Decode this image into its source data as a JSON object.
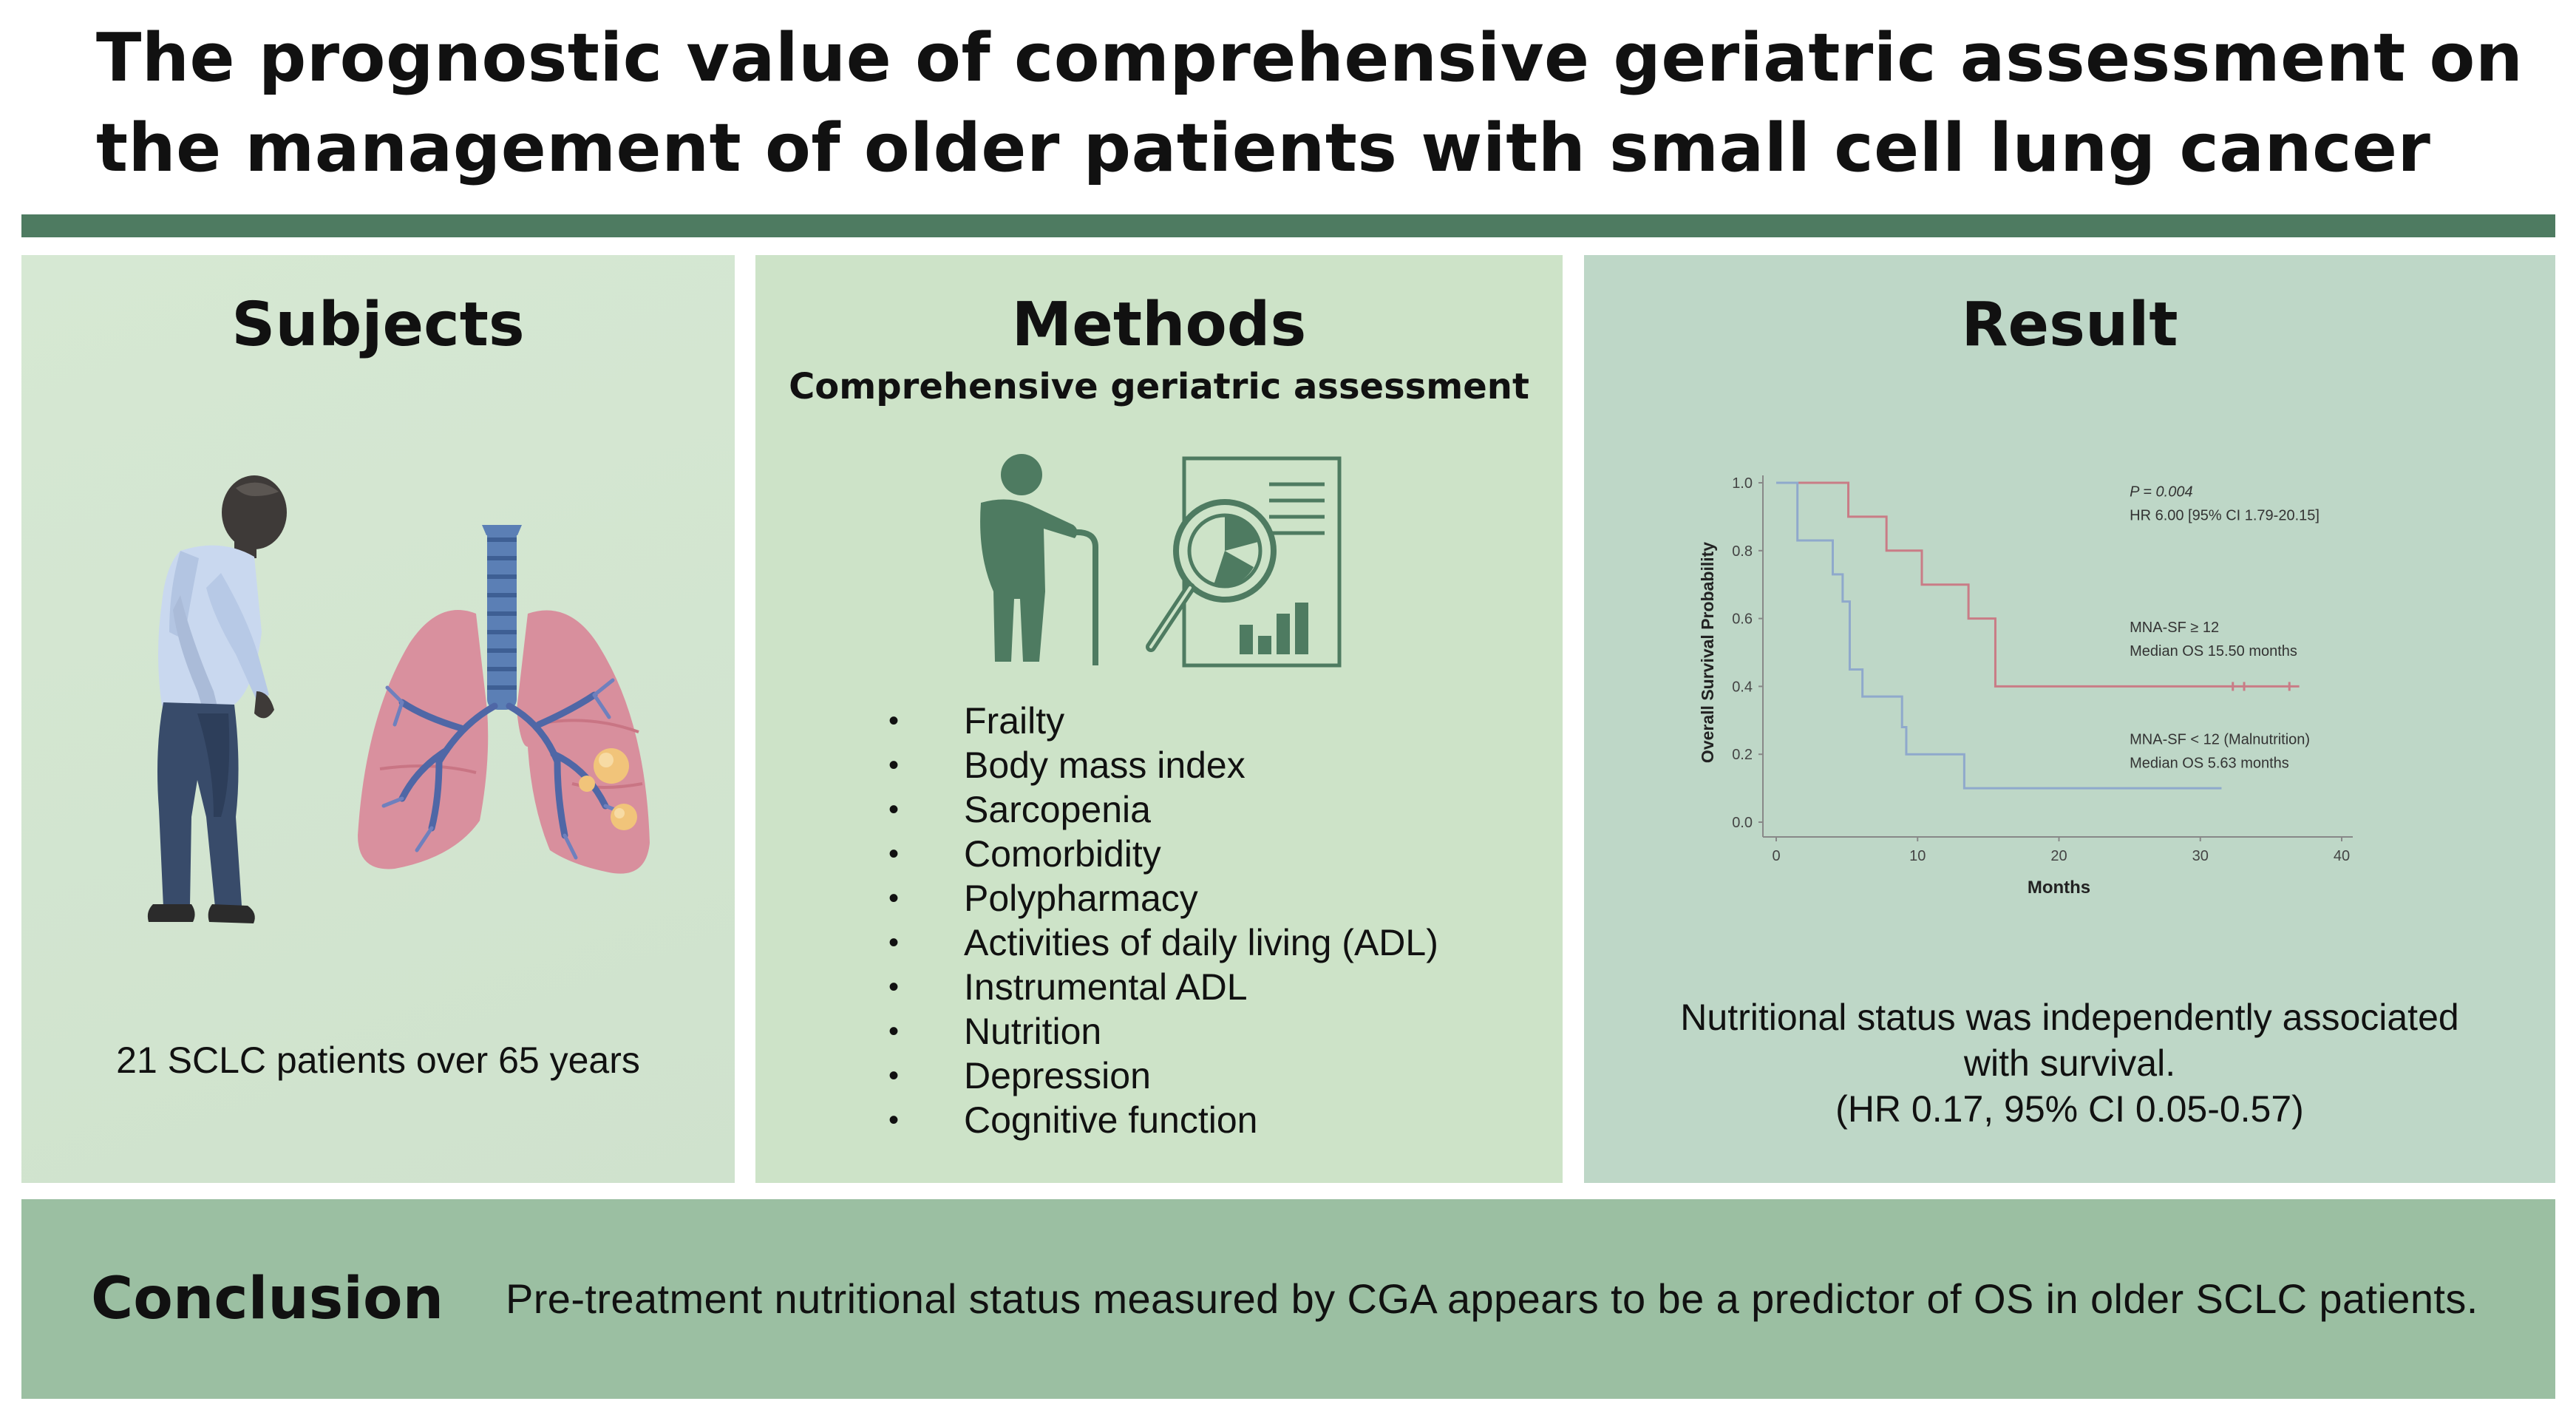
{
  "title": {
    "line1": "The prognostic value of comprehensive geriatric assessment on",
    "line2": "the management of older patients with small cell lung cancer"
  },
  "subjects": {
    "heading": "Subjects",
    "caption": "21 SCLC patients over 65 years",
    "icons": [
      "elderly-man-illustration",
      "lungs-tumor-illustration"
    ]
  },
  "methods": {
    "heading": "Methods",
    "subheading": "Comprehensive geriatric assessment",
    "icons": [
      "elderly-person-cane-icon",
      "report-magnifier-icon"
    ],
    "items": [
      "Frailty",
      "Body mass index",
      "Sarcopenia",
      "Comorbidity",
      "Polypharmacy",
      "Activities of daily living (ADL)",
      "Instrumental ADL",
      "Nutrition",
      "Depression",
      "Cognitive function"
    ]
  },
  "result": {
    "heading": "Result",
    "summary_line1": "Nutritional status was independently associated",
    "summary_line2": "with survival.",
    "summary_line3": "(HR 0.17, 95% CI 0.05-0.57)"
  },
  "chart_data": {
    "type": "line",
    "title": "",
    "xlabel": "Months",
    "ylabel": "Overall Survival Probability",
    "xlim": [
      0,
      40
    ],
    "ylim": [
      0,
      1.0
    ],
    "x_ticks": [
      "0",
      "10",
      "20",
      "30",
      "40"
    ],
    "y_ticks": [
      "0.0",
      "0.2",
      "0.4",
      "0.6",
      "0.8",
      "1.0"
    ],
    "grid": false,
    "colors": {
      "red": "#c97c86",
      "blue": "#8fa9cc"
    },
    "annotations": {
      "p_value": "P = 0.004",
      "hr": "HR 6.00 [95% CI 1.79-20.15]",
      "red_label1": "MNA-SF ≥ 12",
      "red_label2": "Median OS 15.50 months",
      "blue_label1": "MNA-SF < 12 (Malnutrition)",
      "blue_label2": "Median OS 5.63 months"
    },
    "series": [
      {
        "color": "red",
        "steps": [
          [
            0,
            1.0
          ],
          [
            5.1,
            0.9
          ],
          [
            7.8,
            0.8
          ],
          [
            10.3,
            0.7
          ],
          [
            13.6,
            0.6
          ],
          [
            15.5,
            0.4
          ],
          [
            37,
            0.4
          ]
        ],
        "censored": [
          32.3,
          33.1,
          36.3
        ]
      },
      {
        "color": "blue",
        "steps": [
          [
            0,
            1.0
          ],
          [
            1.5,
            0.83
          ],
          [
            4.0,
            0.73
          ],
          [
            4.7,
            0.65
          ],
          [
            5.2,
            0.45
          ],
          [
            6.1,
            0.37
          ],
          [
            8.9,
            0.28
          ],
          [
            9.2,
            0.2
          ],
          [
            13.3,
            0.1
          ],
          [
            31.5,
            0.1
          ]
        ],
        "censored": []
      }
    ]
  },
  "conclusion": {
    "heading": "Conclusion",
    "text": "Pre-treatment nutritional status measured by CGA appears to be a predictor of OS in older SCLC patients."
  }
}
